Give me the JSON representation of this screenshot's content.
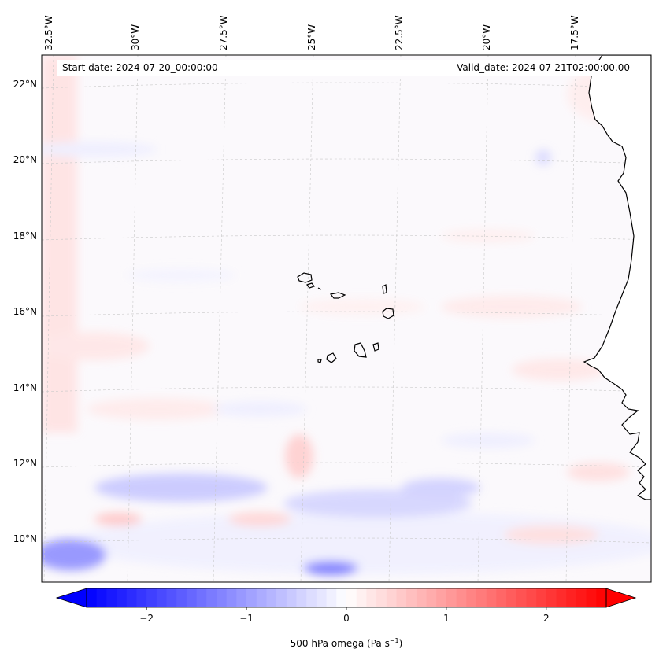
{
  "header": {
    "start_date": "Start date: 2024-07-20_00:00:00",
    "valid_date": "Valid_date: 2024-07-21T02:00:00.00"
  },
  "axes": {
    "longitude_labels": [
      "32.5°W",
      "30°W",
      "27.5°W",
      "25°W",
      "22.5°W",
      "20°W",
      "17.5°W"
    ],
    "latitude_labels": [
      "22°N",
      "20°N",
      "18°N",
      "16°N",
      "14°N",
      "12°N",
      "10°N"
    ]
  },
  "colorbar": {
    "ticks": [
      "−2",
      "−1",
      "0",
      "1",
      "2"
    ],
    "label": "500 hPa omega (Pa s",
    "label_superscript": "−1",
    "label_suffix": ")",
    "min": -2.6,
    "max": 2.6,
    "colors": {
      "negative": "#0000ff",
      "zero": "#ffffff",
      "positive": "#ff0000"
    }
  },
  "map": {
    "coastline_color": "#000000",
    "gridline_color": "#b0b0b0"
  }
}
